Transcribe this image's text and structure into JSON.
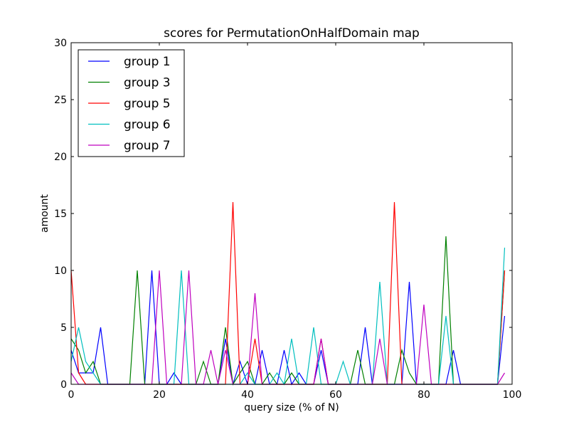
{
  "chart_data": {
    "type": "line",
    "title": "scores for PermutationOnHalfDomain map",
    "xlabel": "query size (% of N)",
    "ylabel": "amount",
    "xlim": [
      0,
      100
    ],
    "ylim": [
      0,
      30
    ],
    "xticks": [
      0,
      20,
      40,
      60,
      80,
      100
    ],
    "yticks": [
      0,
      5,
      10,
      15,
      20,
      25,
      30
    ],
    "xtick_labels": [
      "0",
      "20",
      "40",
      "60",
      "80",
      "100"
    ],
    "ytick_labels": [
      "0",
      "5",
      "10",
      "15",
      "20",
      "25",
      "30"
    ],
    "grid": false,
    "legend_position": "top-left",
    "series": [
      {
        "name": "group 1",
        "color": "#0000ff",
        "points": [
          [
            0,
            3
          ],
          [
            1.7,
            1
          ],
          [
            3.3,
            1
          ],
          [
            5,
            1
          ],
          [
            6.7,
            5
          ],
          [
            8.3,
            0
          ],
          [
            16.7,
            0
          ],
          [
            18.3,
            10
          ],
          [
            20,
            0
          ],
          [
            21.7,
            0
          ],
          [
            23.3,
            1
          ],
          [
            25,
            0
          ],
          [
            33.3,
            0
          ],
          [
            35,
            4
          ],
          [
            36.7,
            0
          ],
          [
            38.3,
            2
          ],
          [
            40,
            0
          ],
          [
            41.7,
            0
          ],
          [
            43.3,
            3
          ],
          [
            45,
            0
          ],
          [
            46.7,
            0
          ],
          [
            48.3,
            3
          ],
          [
            50,
            0
          ],
          [
            51.7,
            1
          ],
          [
            53.3,
            0
          ],
          [
            55,
            0
          ],
          [
            56.7,
            3
          ],
          [
            58.3,
            0
          ],
          [
            65,
            0
          ],
          [
            66.7,
            5
          ],
          [
            68.3,
            0
          ],
          [
            73.3,
            0
          ],
          [
            75,
            0
          ],
          [
            76.7,
            9
          ],
          [
            78.3,
            0
          ],
          [
            85,
            0
          ],
          [
            86.7,
            3
          ],
          [
            88.3,
            0
          ],
          [
            96.7,
            0
          ],
          [
            98.3,
            6
          ]
        ]
      },
      {
        "name": "group 3",
        "color": "#008000",
        "points": [
          [
            0,
            4
          ],
          [
            1.7,
            3
          ],
          [
            3.3,
            1
          ],
          [
            5,
            2
          ],
          [
            6.7,
            0
          ],
          [
            13.3,
            0
          ],
          [
            15,
            10
          ],
          [
            16.7,
            0
          ],
          [
            28.3,
            0
          ],
          [
            30,
            2
          ],
          [
            31.7,
            0
          ],
          [
            33.3,
            0
          ],
          [
            35,
            5
          ],
          [
            36.7,
            0
          ],
          [
            38.3,
            1
          ],
          [
            40,
            2
          ],
          [
            41.7,
            0
          ],
          [
            43.3,
            0
          ],
          [
            45,
            1
          ],
          [
            46.7,
            0
          ],
          [
            48.3,
            0
          ],
          [
            50,
            1
          ],
          [
            51.7,
            0
          ],
          [
            61.7,
            0
          ],
          [
            63.3,
            0
          ],
          [
            65,
            3
          ],
          [
            66.7,
            0
          ],
          [
            73.3,
            0
          ],
          [
            75,
            3
          ],
          [
            76.7,
            1
          ],
          [
            78.3,
            0
          ],
          [
            83.3,
            0
          ],
          [
            85,
            13
          ],
          [
            86.7,
            0
          ],
          [
            96.7,
            0
          ],
          [
            98.3,
            10
          ]
        ]
      },
      {
        "name": "group 5",
        "color": "#ff0000",
        "points": [
          [
            0,
            10
          ],
          [
            1.7,
            1
          ],
          [
            3.3,
            0
          ],
          [
            35,
            0
          ],
          [
            36.7,
            16
          ],
          [
            38.3,
            0
          ],
          [
            40,
            0
          ],
          [
            41.7,
            4
          ],
          [
            43.3,
            0
          ],
          [
            55,
            0
          ],
          [
            56.7,
            4
          ],
          [
            58.3,
            0
          ],
          [
            71.7,
            0
          ],
          [
            73.3,
            16
          ],
          [
            75,
            0
          ],
          [
            96.7,
            0
          ],
          [
            98.3,
            10
          ]
        ]
      },
      {
        "name": "group 6",
        "color": "#00bfbf",
        "points": [
          [
            0,
            2
          ],
          [
            1.7,
            5
          ],
          [
            3.3,
            2
          ],
          [
            5,
            1
          ],
          [
            6.7,
            0
          ],
          [
            23.3,
            0
          ],
          [
            25,
            10
          ],
          [
            26.7,
            0
          ],
          [
            38.3,
            0
          ],
          [
            40,
            1
          ],
          [
            41.7,
            0
          ],
          [
            45,
            0
          ],
          [
            46.7,
            1
          ],
          [
            48.3,
            0
          ],
          [
            50,
            4
          ],
          [
            51.7,
            0
          ],
          [
            53.3,
            0
          ],
          [
            55,
            5
          ],
          [
            56.7,
            0
          ],
          [
            60,
            0
          ],
          [
            61.7,
            2
          ],
          [
            63.3,
            0
          ],
          [
            68.3,
            0
          ],
          [
            70,
            9
          ],
          [
            71.7,
            0
          ],
          [
            83.3,
            0
          ],
          [
            85,
            6
          ],
          [
            86.7,
            0
          ],
          [
            96.7,
            0
          ],
          [
            98.3,
            12
          ]
        ]
      },
      {
        "name": "group 7",
        "color": "#bf00bf",
        "points": [
          [
            0,
            1
          ],
          [
            1.7,
            0
          ],
          [
            18.3,
            0
          ],
          [
            20,
            10
          ],
          [
            21.7,
            0
          ],
          [
            25,
            0
          ],
          [
            26.7,
            10
          ],
          [
            28.3,
            0
          ],
          [
            30,
            0
          ],
          [
            31.7,
            3
          ],
          [
            33.3,
            0
          ],
          [
            35,
            3
          ],
          [
            36.7,
            0
          ],
          [
            40,
            0
          ],
          [
            41.7,
            8
          ],
          [
            43.3,
            0
          ],
          [
            55,
            0
          ],
          [
            56.7,
            4
          ],
          [
            58.3,
            0
          ],
          [
            68.3,
            0
          ],
          [
            70,
            4
          ],
          [
            71.7,
            0
          ],
          [
            78.3,
            0
          ],
          [
            80,
            7
          ],
          [
            81.7,
            0
          ],
          [
            96.7,
            0
          ],
          [
            98.3,
            1
          ]
        ]
      }
    ]
  }
}
